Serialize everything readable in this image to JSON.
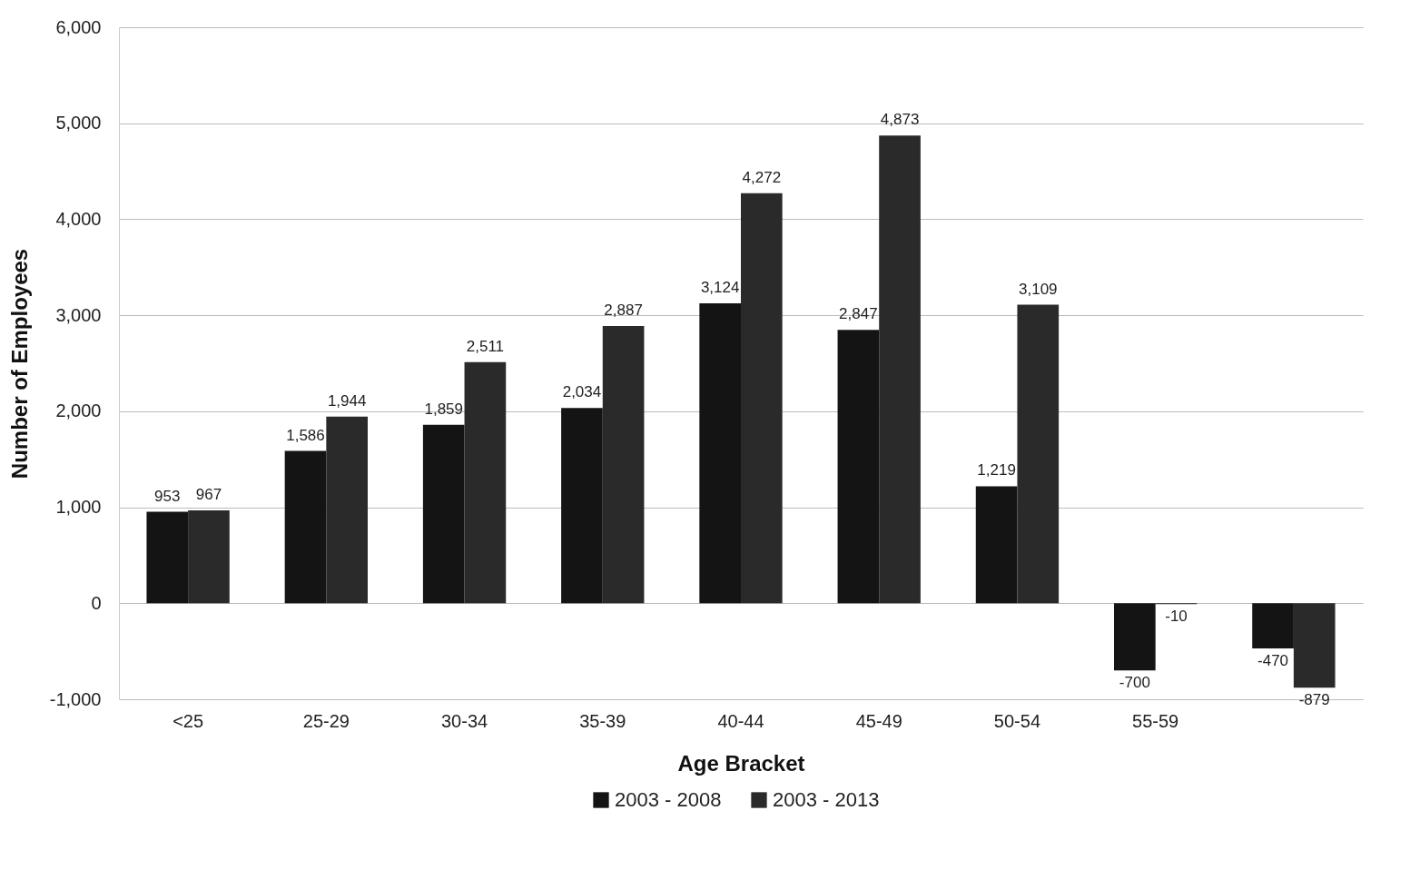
{
  "chart_data": {
    "type": "bar",
    "xlabel": "Age Bracket",
    "ylabel": "Number of Employees",
    "categories": [
      "<25",
      "25-29",
      "30-34",
      "35-39",
      "40-44",
      "45-49",
      "50-54",
      "55-59",
      null
    ],
    "series": [
      {
        "name": "2003 - 2008",
        "color": "#141414",
        "values": [
          953,
          1586,
          1859,
          2034,
          3124,
          2847,
          1219,
          -700,
          -470
        ],
        "value_labels": [
          "953",
          "1,586",
          "1,859",
          "2,034",
          "3,124",
          "2,847",
          "1,219",
          "-700",
          "-470"
        ]
      },
      {
        "name": "2003 - 2013",
        "color": "#2a2a2a",
        "values": [
          967,
          1944,
          2511,
          2887,
          4272,
          4873,
          3109,
          -10,
          -879
        ],
        "value_labels": [
          "967",
          "1,944",
          "2,511",
          "2,887",
          "4,272",
          "4,873",
          "3,109",
          "-10",
          "-879"
        ]
      }
    ],
    "ylim": [
      -1000,
      6000
    ],
    "yticks": [
      {
        "value": -1000,
        "label": "-1,000"
      },
      0,
      {
        "value": 1000,
        "label": "1,000"
      },
      {
        "value": 2000,
        "label": "2,000"
      },
      {
        "value": 3000,
        "label": "3,000"
      },
      {
        "value": 4000,
        "label": "4,000"
      },
      {
        "value": 5000,
        "label": "5,000"
      },
      {
        "value": 6000,
        "label": "6,000"
      }
    ],
    "grid": "y",
    "legend": "bottom"
  }
}
